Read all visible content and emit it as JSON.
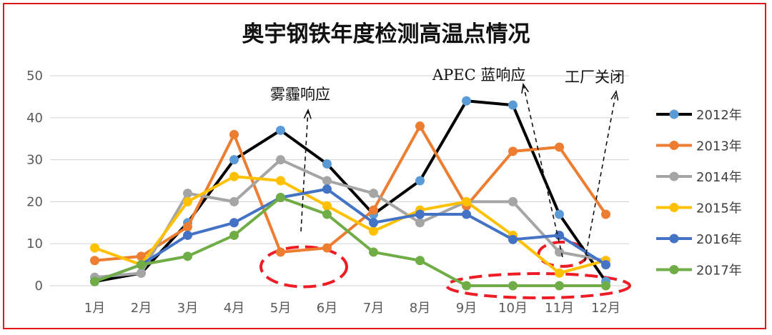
{
  "chart_data": {
    "type": "line",
    "title": "奥宇钢铁年度检测高温点情况",
    "categories": [
      "1月",
      "2月",
      "3月",
      "4月",
      "5月",
      "6月",
      "7月",
      "8月",
      "9月",
      "10月",
      "11月",
      "12月"
    ],
    "ylim": [
      0,
      50
    ],
    "yticks": [
      0,
      10,
      20,
      30,
      40,
      50
    ],
    "grid": true,
    "legend_position": "right",
    "series": [
      {
        "name": "2012年",
        "color": "#000000",
        "marker_color": "#5b9bd5",
        "values": [
          1,
          3,
          15,
          30,
          37,
          29,
          17,
          25,
          44,
          43,
          17,
          1
        ]
      },
      {
        "name": "2013年",
        "color": "#ed7d31",
        "marker_color": "#ed7d31",
        "values": [
          6,
          7,
          14,
          36,
          8,
          9,
          18,
          38,
          19,
          32,
          33,
          17
        ]
      },
      {
        "name": "2014年",
        "color": "#a5a5a5",
        "marker_color": "#a5a5a5",
        "values": [
          2,
          3,
          22,
          20,
          30,
          25,
          22,
          15,
          20,
          20,
          8,
          6
        ]
      },
      {
        "name": "2015年",
        "color": "#ffc000",
        "marker_color": "#ffc000",
        "values": [
          9,
          5,
          20,
          26,
          25,
          19,
          13,
          18,
          20,
          12,
          3,
          6
        ]
      },
      {
        "name": "2016年",
        "color": "#4472c4",
        "marker_color": "#4472c4",
        "values": [
          1,
          5,
          12,
          15,
          21,
          23,
          15,
          17,
          17,
          11,
          12,
          5
        ]
      },
      {
        "name": "2017年",
        "color": "#70ad47",
        "marker_color": "#70ad47",
        "values": [
          1,
          5,
          7,
          12,
          21,
          17,
          8,
          6,
          0,
          0,
          0,
          0
        ]
      }
    ],
    "annotations": [
      {
        "text": "雾霾响应",
        "month": "5月-6月"
      },
      {
        "text": "APEC 蓝响应",
        "month": "11月"
      },
      {
        "text": "工厂关闭",
        "month": "12月"
      }
    ]
  }
}
